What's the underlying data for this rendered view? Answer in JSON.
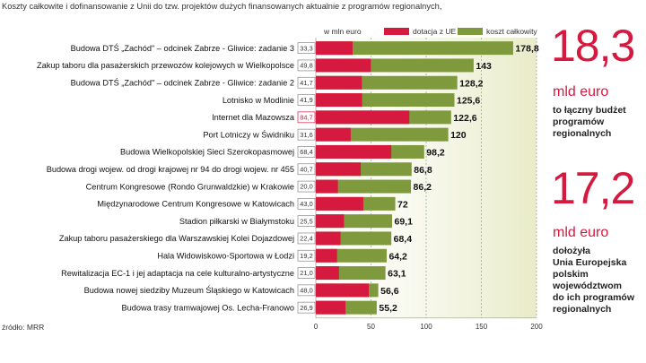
{
  "subtitle": "Koszty całkowite i dofinansowanie z Unii do tzw. projektów dużych finansowanych aktualnie z programów regionalnych,",
  "unit_label": "w mln euro",
  "source": "źródło: MRR",
  "colors": {
    "ue": "#d6193f",
    "total": "#7f9a3c",
    "highlight_box": "#d6193f"
  },
  "chart_data": {
    "type": "bar",
    "orientation": "horizontal",
    "stacked_overlay": true,
    "unit": "w mln euro",
    "legend": {
      "placement": "top-right",
      "entries": [
        "dotacja z UE",
        "koszt całkowity"
      ]
    },
    "xlim": [
      0,
      200
    ],
    "xticks": [
      "0",
      "50",
      "100",
      "150",
      "200"
    ],
    "grid": true,
    "categories": [
      "Budowa DTŚ „Zachód\" – odcinek Zabrze - Gliwice: zadanie 3",
      "Zakup taboru dla pasażerskich przewozów kolejowych w Wielkopolsce",
      "Budowa DTŚ „Zachód\" – odcinek Zabrze - Gliwice: zadanie 2",
      "Lotnisko w Modlinie",
      "Internet dla Mazowsza",
      "Port Lotniczy w Świdniku",
      "Budowa Wielkopolskiej Sieci Szerokopasmowej",
      "Budowa drogi wojew. od drogi krajowej nr 94 do drogi wojew. nr 455",
      "Centrum Kongresowe (Rondo Grunwaldzkie) w Krakowie",
      "Międzynarodowe Centrum Kongresowe w Katowicach",
      "Stadion piłkarski w Białymstoku",
      "Zakup taboru pasażerskiego dla Warszawskiej Kolei Dojazdowej",
      "Hala Widowiskowo-Sportowa w Łodzi",
      "Rewitalizacja EC-1 i jej adaptacja na cele kulturalno-artystyczne",
      "Budowa nowej siedziby Muzeum Śląskiego w Katowicach",
      "Budowa trasy tramwajowej Os. Lecha-Franowo"
    ],
    "series": [
      {
        "name": "dotacja z UE",
        "values": [
          33.3,
          49.8,
          41.7,
          41.9,
          84.7,
          31.6,
          68.4,
          40.7,
          20.0,
          43.0,
          25.5,
          22.4,
          19.2,
          21.0,
          48.0,
          26.9
        ]
      },
      {
        "name": "koszt całkowity",
        "values": [
          178.8,
          143,
          128.2,
          125.6,
          122.6,
          120,
          98.2,
          86.8,
          86.2,
          72,
          69.1,
          68.4,
          64.2,
          63.1,
          56.6,
          55.2
        ]
      }
    ],
    "ue_labels": [
      "33,3",
      "49,8",
      "41,7",
      "41,9",
      "84,7",
      "31,6",
      "68,4",
      "40,7",
      "20,0",
      "43,0",
      "25,5",
      "22,4",
      "19,2",
      "21,0",
      "48,0",
      "26,9"
    ],
    "total_labels": [
      "178,8",
      "143",
      "128,2",
      "125,6",
      "122,6",
      "120",
      "98,2",
      "86,8",
      "86,2",
      "72",
      "69,1",
      "68,4",
      "64,2",
      "63,1",
      "56,6",
      "55,2"
    ],
    "highlight_index": 4
  },
  "sidebar": {
    "stat1": {
      "value": "18,3",
      "unit": "mld euro",
      "desc": [
        "to łączny budżet",
        "programów",
        "regionalnych"
      ]
    },
    "stat2": {
      "value": "17,2",
      "unit": "mld euro",
      "desc": [
        "dołożyła",
        "Unia Europejska",
        "polskim",
        "województwom",
        "do ich programów",
        "regionalnych"
      ]
    }
  }
}
